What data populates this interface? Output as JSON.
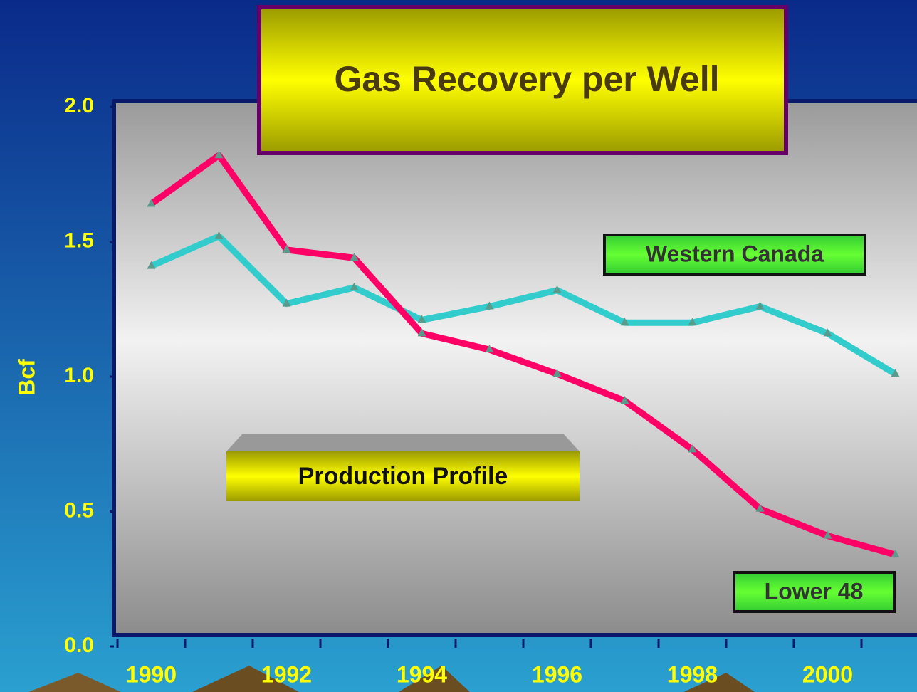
{
  "chart_data": {
    "type": "line",
    "title": "Gas Recovery per Well",
    "annotation": "Production Profile",
    "y_label": "Bcf",
    "categories": [
      "1990",
      null,
      "1992",
      null,
      "1994",
      null,
      "1996",
      null,
      "1998",
      null,
      "2000",
      null
    ],
    "series": [
      {
        "name": "Western Canada",
        "color": "#33cccc",
        "values": [
          1.41,
          1.52,
          1.27,
          1.33,
          1.21,
          1.26,
          1.32,
          1.2,
          1.2,
          1.26,
          1.16,
          1.01
        ]
      },
      {
        "name": "Lower 48",
        "color": "#ff0066",
        "values": [
          1.64,
          1.82,
          1.47,
          1.44,
          1.16,
          1.1,
          1.01,
          0.91,
          0.73,
          0.51,
          0.41,
          0.34
        ]
      }
    ],
    "ylim": [
      0,
      2
    ],
    "yticks": [
      {
        "value": 0,
        "label": "0.0"
      },
      0.5,
      {
        "value": 1,
        "label": "1.0"
      },
      1.5,
      {
        "value": 2,
        "label": "2.0"
      }
    ]
  }
}
